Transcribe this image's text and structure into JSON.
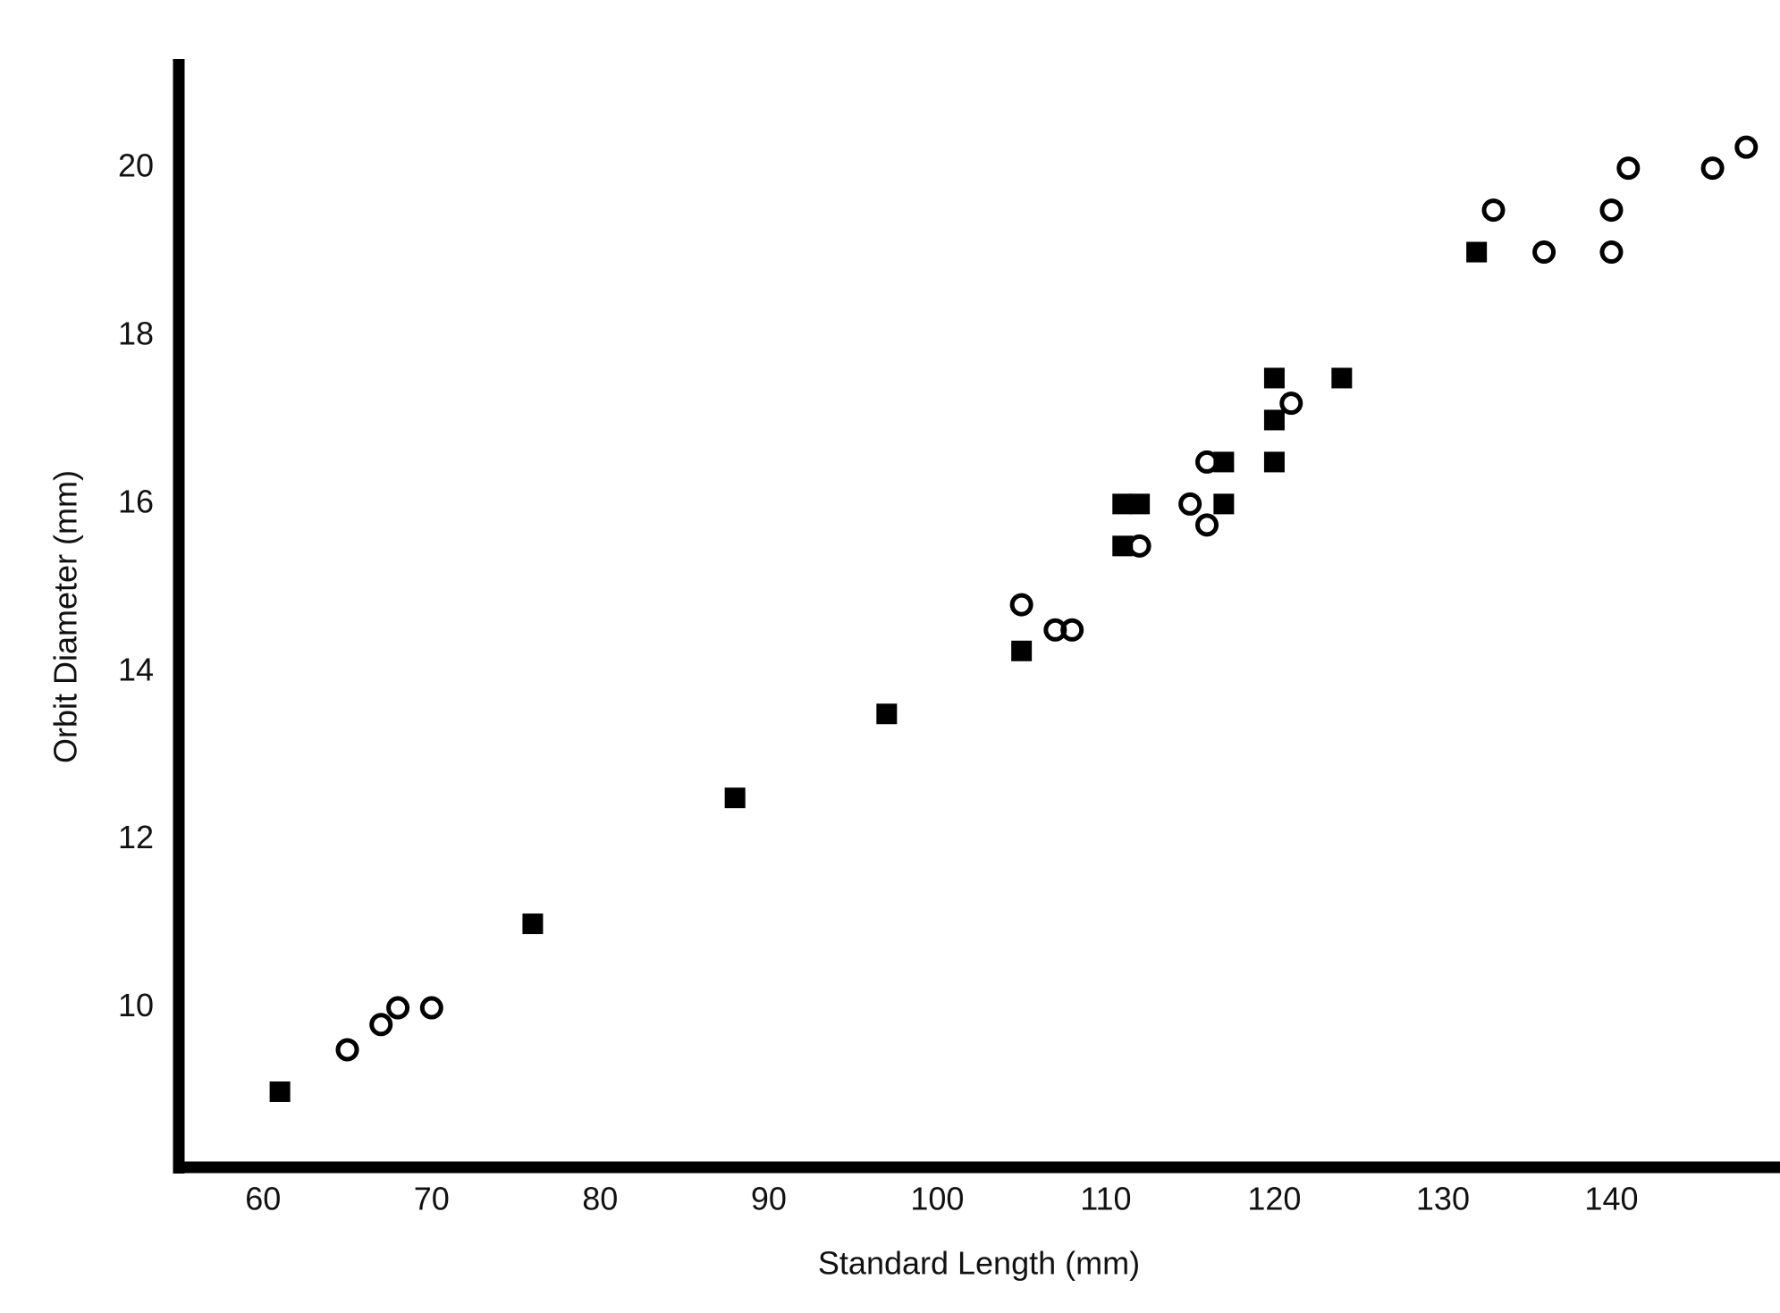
{
  "chart_data": {
    "type": "scatter",
    "xlabel": "Standard Length (mm)",
    "ylabel": "Orbit Diameter (mm)",
    "xlim": [
      55,
      150
    ],
    "ylim": [
      8.1,
      21.3
    ],
    "xticks": [
      60,
      70,
      80,
      90,
      100,
      110,
      120,
      130,
      140
    ],
    "yticks": [
      10,
      12,
      14,
      16,
      18,
      20
    ],
    "grid": false,
    "series": [
      {
        "marker": "square",
        "color": "#000000",
        "x": [
          61,
          76,
          88,
          97,
          105,
          111,
          112,
          111,
          117,
          117,
          120,
          120,
          120,
          124,
          132
        ],
        "values": [
          9,
          11,
          12.5,
          13.5,
          14.25,
          16,
          16,
          15.5,
          16.5,
          16,
          17.5,
          17,
          16.5,
          17.5,
          19
        ]
      },
      {
        "marker": "circle",
        "color": "#000000",
        "x": [
          65,
          67,
          68,
          70,
          105,
          107,
          108,
          112,
          115,
          116,
          116,
          121,
          133,
          136,
          140,
          140,
          141,
          146,
          148
        ],
        "values": [
          9.5,
          9.8,
          10,
          10,
          14.8,
          14.5,
          14.5,
          15.5,
          16,
          15.75,
          16.5,
          17.2,
          19.5,
          19,
          19.5,
          19,
          20,
          20,
          20.25
        ]
      }
    ]
  }
}
